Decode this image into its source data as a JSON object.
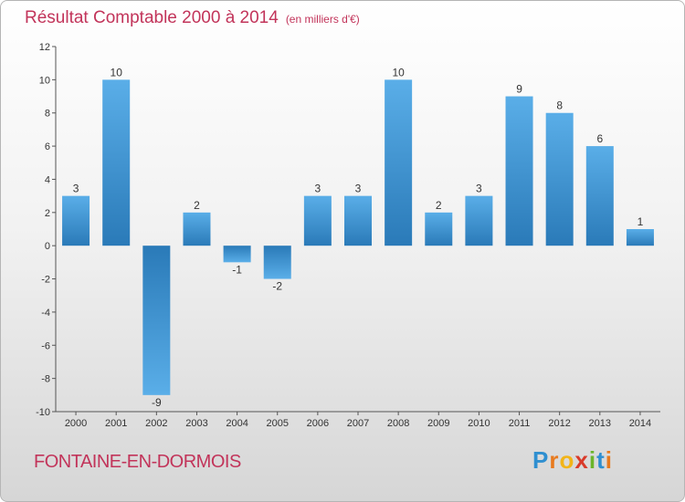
{
  "chart_data": {
    "type": "bar",
    "title": "Résultat Comptable 2000 à 2014",
    "subtitle": "(en milliers d'€)",
    "xlabel": "",
    "ylabel": "",
    "ylim": [
      -10,
      12
    ],
    "yticks": [
      -10,
      -8,
      -6,
      -4,
      -2,
      0,
      2,
      4,
      6,
      8,
      10,
      12
    ],
    "ytick_labels": [
      "-10",
      "-8",
      "-6",
      "-4",
      "-2",
      "0",
      "2",
      "4",
      "6",
      "8",
      "10",
      "12"
    ],
    "categories": [
      "2000",
      "2001",
      "2002",
      "2003",
      "2004",
      "2005",
      "2006",
      "2007",
      "2008",
      "2009",
      "2010",
      "2011",
      "2012",
      "2013",
      "2014"
    ],
    "values": [
      3,
      10,
      -9,
      2,
      -1,
      -2,
      3,
      3,
      10,
      2,
      3,
      9,
      8,
      6,
      1
    ],
    "value_labels": [
      "3",
      "10",
      "-9",
      "2",
      "-1",
      "-2",
      "3",
      "3",
      "10",
      "2",
      "3",
      "9",
      "8",
      "6",
      "1"
    ],
    "grid": false,
    "colors": {
      "bar_light": "#5aaee8",
      "bar_dark": "#2a7ab8",
      "title": "#c2345a"
    }
  },
  "footer": {
    "place": "FONTAINE-EN-DORMOIS",
    "logo_letters": [
      "P",
      "r",
      "o",
      "x",
      "i",
      "t",
      "i"
    ],
    "logo_colors": [
      "#2f8fd0",
      "#e87a1e",
      "#f2b418",
      "#d93a2a",
      "#6bb52b",
      "#2f8fd0",
      "#e87a1e"
    ]
  }
}
